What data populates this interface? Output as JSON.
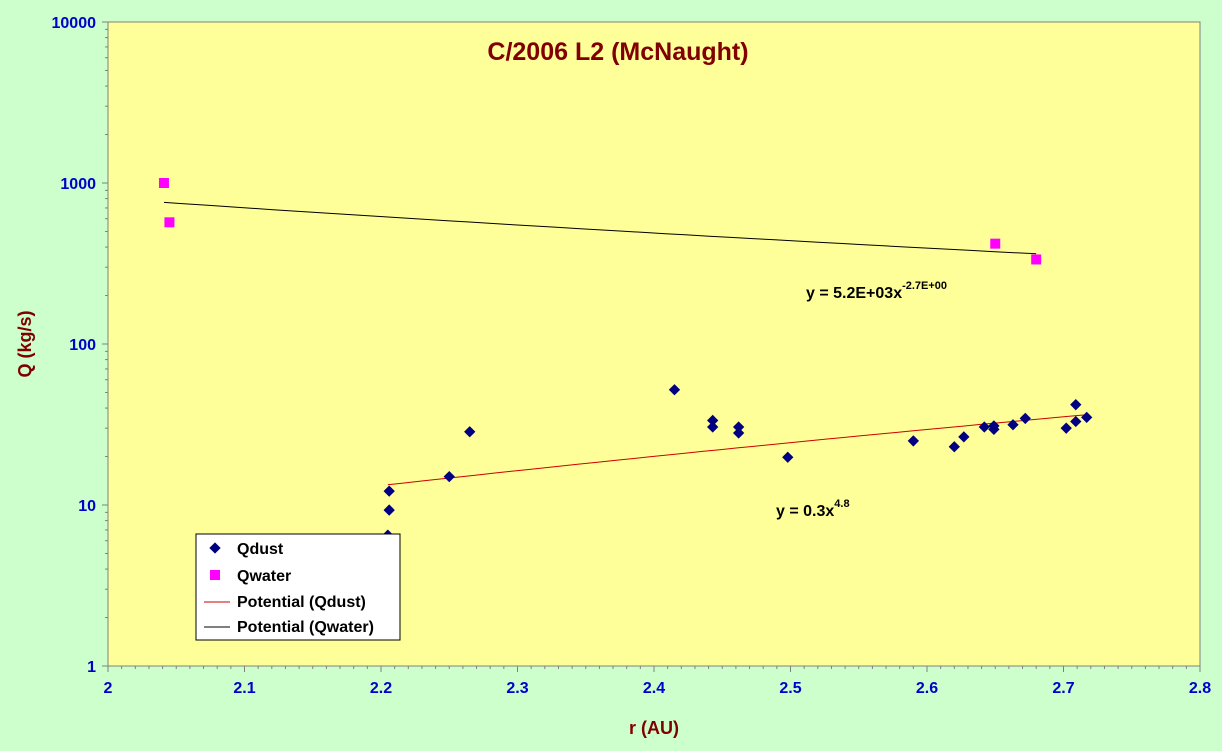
{
  "chart_data": {
    "type": "scatter",
    "title": "C/2006 L2 (McNaught)",
    "xlabel": "r (AU)",
    "ylabel": "Q (kg/s)",
    "xlim": [
      2,
      2.8
    ],
    "ylim": [
      1,
      10000
    ],
    "yscale": "log",
    "x_ticks": [
      "2",
      "2.1",
      "2.2",
      "2.3",
      "2.4",
      "2.5",
      "2.6",
      "2.7",
      "2.8"
    ],
    "y_ticks": [
      "1",
      "10",
      "100",
      "1000",
      "10000"
    ],
    "grid": false,
    "legend_position": "bottom-left",
    "series": [
      {
        "name": "Qdust",
        "marker": "diamond",
        "color": "#000080",
        "points": [
          [
            2.205,
            6.5
          ],
          [
            2.206,
            9.3
          ],
          [
            2.206,
            12.2
          ],
          [
            2.25,
            15.0
          ],
          [
            2.265,
            28.5
          ],
          [
            2.415,
            52.0
          ],
          [
            2.443,
            33.5
          ],
          [
            2.443,
            30.5
          ],
          [
            2.462,
            30.5
          ],
          [
            2.462,
            28.0
          ],
          [
            2.498,
            19.8
          ],
          [
            2.59,
            25.0
          ],
          [
            2.62,
            23.0
          ],
          [
            2.627,
            26.5
          ],
          [
            2.642,
            30.5
          ],
          [
            2.649,
            31.0
          ],
          [
            2.649,
            29.5
          ],
          [
            2.663,
            31.5
          ],
          [
            2.672,
            34.5
          ],
          [
            2.702,
            30.0
          ],
          [
            2.709,
            42.0
          ],
          [
            2.709,
            33.0
          ],
          [
            2.717,
            35.0
          ]
        ]
      },
      {
        "name": "Qwater",
        "marker": "square",
        "color": "#ff00ff",
        "points": [
          [
            2.041,
            1000.0
          ],
          [
            2.045,
            570.0
          ],
          [
            2.65,
            420.0
          ],
          [
            2.68,
            335.0
          ]
        ]
      }
    ],
    "trendlines": [
      {
        "name": "Potential (Qdust)",
        "color": "#cc0000",
        "coef": 0.3,
        "exp": 4.8,
        "x_range": [
          2.205,
          2.717
        ],
        "equation_text": "y = 0.3x",
        "equation_sup": "4.8"
      },
      {
        "name": "Potential (Qwater)",
        "color": "#000000",
        "coef": 5200,
        "exp": -2.7,
        "x_range": [
          2.041,
          2.68
        ],
        "equation_text": "y = 5.2E+03x",
        "equation_sup": "-2.7E+00"
      }
    ]
  }
}
